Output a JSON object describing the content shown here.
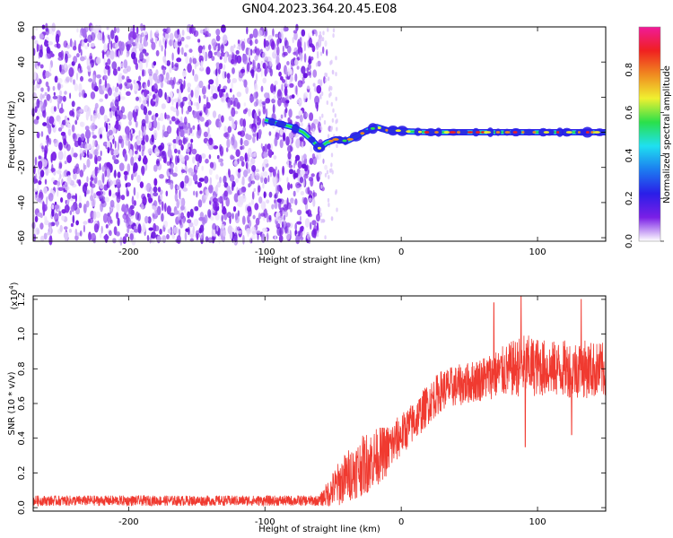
{
  "title": "GN04.2023.364.20.45.E08",
  "colors": {
    "snr_line": "#f03a30",
    "spectrogram_noise": "#7a1fe6",
    "axis": "#000000"
  },
  "chart_data": [
    {
      "type": "heatmap",
      "xlabel": "Height of straight line (km)",
      "ylabel": "Frequency (Hz)",
      "xlim": [
        -270,
        150
      ],
      "ylim": [
        -62,
        60
      ],
      "x_ticks": [
        -200,
        -100,
        0,
        100
      ],
      "y_ticks": [
        -60,
        -40,
        -20,
        0,
        20,
        40,
        60
      ],
      "x_tick_labels": [
        "-200",
        "-100",
        "0",
        "100"
      ],
      "y_tick_labels": [
        "-60",
        "-40",
        "-20",
        "0",
        "20",
        "40",
        "60"
      ],
      "grid": false,
      "noise_region_x": [
        -270,
        -52
      ],
      "signal_band_frequency_hz": 0,
      "signal_start_x": -100,
      "colorbar": {
        "label": "Normalized spectral amplitude",
        "range": [
          0,
          1
        ],
        "ticks": [
          0.0,
          0.2,
          0.4,
          0.6,
          0.8
        ],
        "tick_labels": [
          "0.0",
          "0.2",
          "0.4",
          "0.6",
          "0.8"
        ],
        "colormap": [
          "#ffffff",
          "#7a1fe6",
          "#2a1ee8",
          "#1c7cf0",
          "#1fe0f0",
          "#2ae04a",
          "#f0f030",
          "#f08a20",
          "#f02020",
          "#f01a9a"
        ]
      },
      "band_centerline": [
        {
          "x": -100,
          "y": 7
        },
        {
          "x": -90,
          "y": 5
        },
        {
          "x": -80,
          "y": 3
        },
        {
          "x": -72,
          "y": 0
        },
        {
          "x": -66,
          "y": -4
        },
        {
          "x": -60,
          "y": -9
        },
        {
          "x": -55,
          "y": -6
        },
        {
          "x": -48,
          "y": -4
        },
        {
          "x": -40,
          "y": -5
        },
        {
          "x": -32,
          "y": -2
        },
        {
          "x": -25,
          "y": 1
        },
        {
          "x": -18,
          "y": 3
        },
        {
          "x": -10,
          "y": 1
        },
        {
          "x": -3,
          "y": 1
        },
        {
          "x": 5,
          "y": 0.5
        },
        {
          "x": 20,
          "y": 0
        },
        {
          "x": 150,
          "y": 0
        }
      ]
    },
    {
      "type": "line",
      "xlabel": "Height of straight line (km)",
      "ylabel": "SNR (10 * v/v)",
      "y_multiplier": "(x10",
      "y_multiplier_exp": "4",
      "y_multiplier_close": ")",
      "xlim": [
        -270,
        150
      ],
      "ylim": [
        -0.02,
        1.22
      ],
      "x_ticks": [
        -200,
        -100,
        0,
        100
      ],
      "y_ticks": [
        0.0,
        0.2,
        0.4,
        0.6,
        0.8,
        1.0,
        1.2
      ],
      "x_tick_labels": [
        "-200",
        "-100",
        "0",
        "100"
      ],
      "y_tick_labels": [
        "0.0",
        "0.2",
        "0.4",
        "0.6",
        "0.8",
        "1.0",
        "1.2"
      ],
      "grid": false,
      "series": [
        {
          "color": "#f03a30",
          "envelope": [
            {
              "x": -270,
              "mean": 0.04,
              "spread": 0.03
            },
            {
              "x": -60,
              "mean": 0.04,
              "spread": 0.03
            },
            {
              "x": -48,
              "mean": 0.12,
              "spread": 0.12
            },
            {
              "x": -40,
              "mean": 0.18,
              "spread": 0.15
            },
            {
              "x": -25,
              "mean": 0.26,
              "spread": 0.18
            },
            {
              "x": -10,
              "mean": 0.33,
              "spread": 0.15
            },
            {
              "x": 0,
              "mean": 0.42,
              "spread": 0.12
            },
            {
              "x": 10,
              "mean": 0.5,
              "spread": 0.12
            },
            {
              "x": 20,
              "mean": 0.6,
              "spread": 0.12
            },
            {
              "x": 30,
              "mean": 0.68,
              "spread": 0.12
            },
            {
              "x": 50,
              "mean": 0.72,
              "spread": 0.12
            },
            {
              "x": 70,
              "mean": 0.77,
              "spread": 0.14
            },
            {
              "x": 90,
              "mean": 0.82,
              "spread": 0.18
            },
            {
              "x": 110,
              "mean": 0.8,
              "spread": 0.16
            },
            {
              "x": 130,
              "mean": 0.8,
              "spread": 0.17
            },
            {
              "x": 150,
              "mean": 0.79,
              "spread": 0.16
            }
          ],
          "peaks": [
            {
              "x": 68,
              "y": 1.18
            },
            {
              "x": 88,
              "y": 1.22
            },
            {
              "x": 132,
              "y": 1.2
            },
            {
              "x": 91,
              "y": 0.35
            },
            {
              "x": 125,
              "y": 0.42
            }
          ]
        }
      ]
    }
  ]
}
